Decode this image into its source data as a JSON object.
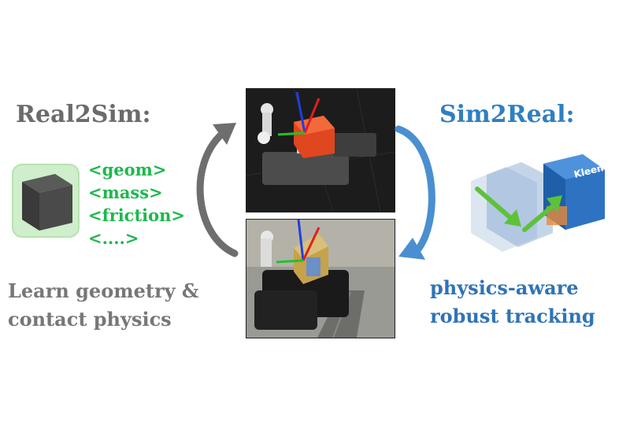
{
  "real2sim": {
    "title": "Real2Sim:",
    "params": [
      "<geom>",
      "<mass>",
      "<friction>",
      "<....>"
    ],
    "caption_line1": "Learn geometry &",
    "caption_line2": "contact physics"
  },
  "sim2real": {
    "title": "Sim2Real:",
    "caption_line1": "physics-aware",
    "caption_line2": "robust tracking",
    "box_brand": "Kleenex"
  },
  "colors": {
    "real2sim_title": "#6b6b6b",
    "sim2real_title": "#2f7fc1",
    "param_green": "#1db84d",
    "arrow_gray": "#6e6e6e",
    "arrow_blue": "#4a8fd0"
  }
}
